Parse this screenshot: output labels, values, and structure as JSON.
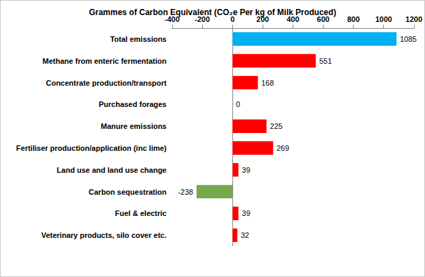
{
  "chart_data": {
    "type": "bar",
    "orientation": "horizontal",
    "title": "Grammes of Carbon Equivalent (CO₂e Per kg of Milk Produced)",
    "categories": [
      "Total emissions",
      "Methane from enteric fermentation",
      "Concentrate production/transport",
      "Purchased forages",
      "Manure emissions",
      "Fertiliser production/application (inc lime)",
      "Land use and land use change",
      "Carbon sequestration",
      "Fuel & electric",
      "Veterinary products, silo cover etc."
    ],
    "values": [
      1085,
      551,
      168,
      0,
      225,
      269,
      39,
      -238,
      39,
      32
    ],
    "colors": [
      "#00b0f0",
      "#ff0000",
      "#ff0000",
      "#ff0000",
      "#ff0000",
      "#ff0000",
      "#ff0000",
      "#77a94b",
      "#ff0000",
      "#ff0000"
    ],
    "xlim": [
      -400,
      1200
    ],
    "xticks": [
      -400,
      -200,
      0,
      200,
      400,
      600,
      800,
      1000,
      1200
    ],
    "data_labels": true,
    "grid": false
  }
}
